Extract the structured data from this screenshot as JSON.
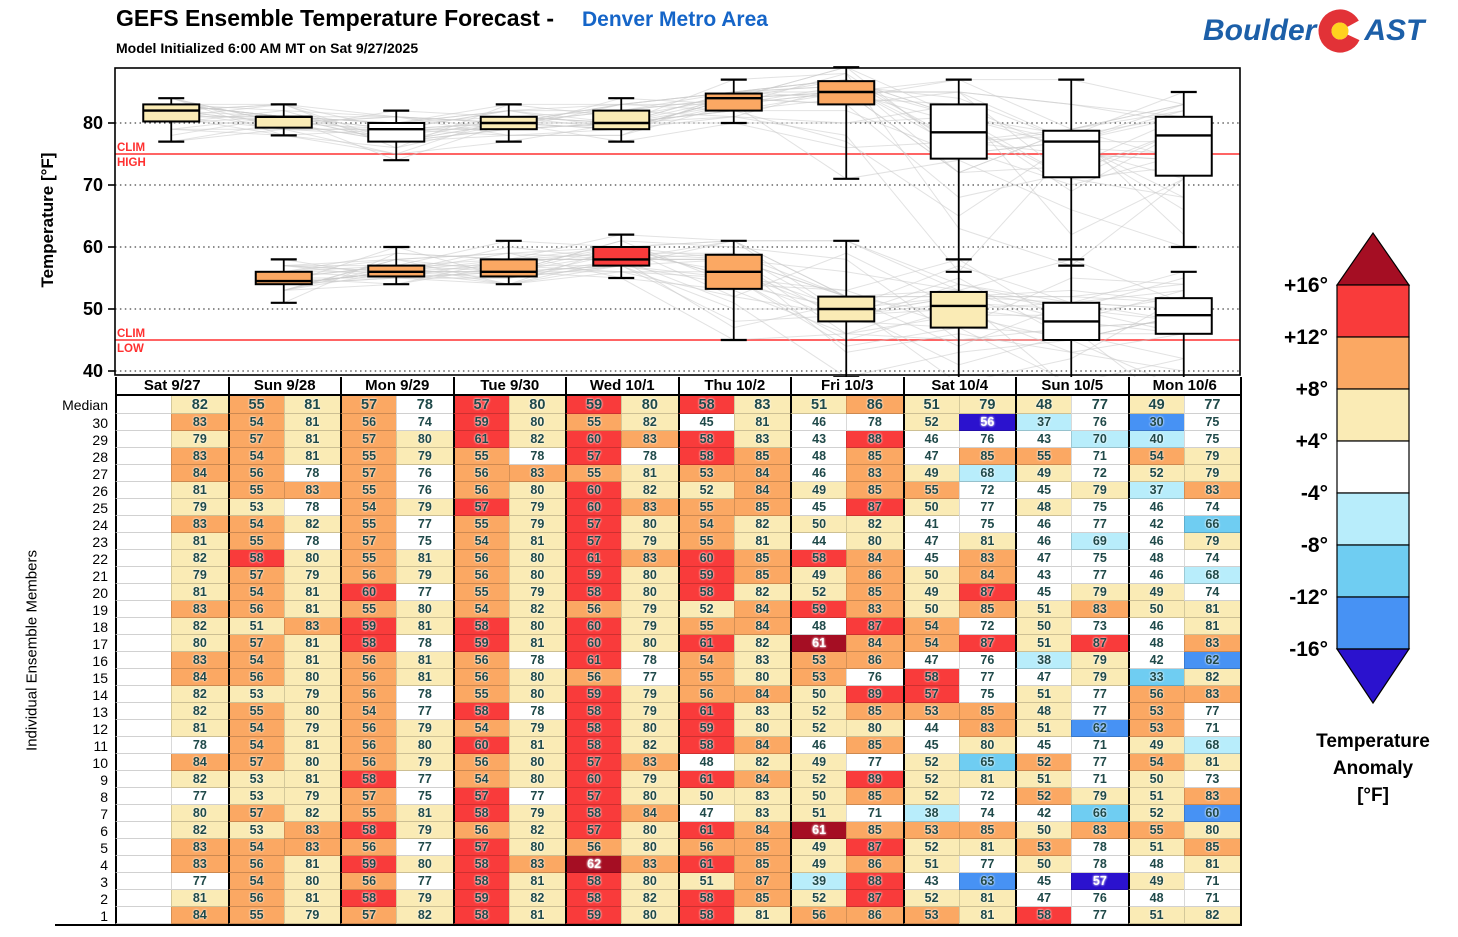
{
  "title": {
    "main": "GEFS Ensemble Temperature Forecast -",
    "region": "Denver Metro Area",
    "subtitle": "Model Initialized 6:00 AM MT on Sat 9/27/2025"
  },
  "logo": {
    "part1": "Boulder",
    "part2": "AST"
  },
  "colors": {
    "darkred": "#A50E23",
    "red": "#F93B3B",
    "orange": "#FBA863",
    "paleyellow": "#FAEBB5",
    "white": "#FFFFFF",
    "palecyan": "#B8EDFB",
    "lightblue": "#6FCDF2",
    "medblue": "#4792F4",
    "darkblue": "#2B12CE",
    "clim_line": "#FF3030",
    "spaghetti": "#CACACA",
    "title_blue": "#1565C8",
    "logo_blue": "#1C5FA8",
    "logo_red": "#E23237",
    "logo_yellow": "#FFD21E",
    "cell_text": "#1F4949",
    "cell_text_light": "#FFFFFF"
  },
  "chart_data": {
    "type": "box",
    "ylabel": "Temperature [°F]",
    "row_axis_label": "Individual Ensemble Members",
    "yticks": [
      40,
      50,
      60,
      70,
      80
    ],
    "clim_high": {
      "value": 75,
      "label1": "CLIM",
      "label2": "HIGH"
    },
    "clim_low": {
      "value": 45,
      "label1": "CLIM",
      "label2": "LOW"
    },
    "days": [
      "Sat 9/27",
      "Sun 9/28",
      "Mon 9/29",
      "Tue 9/30",
      "Wed 10/1",
      "Thu 10/2",
      "Fri 10/3",
      "Sat 10/4",
      "Sun 10/5",
      "Mon 10/6"
    ],
    "high_box_colors": [
      "paleyellow",
      "paleyellow",
      "white",
      "paleyellow",
      "paleyellow",
      "orange",
      "orange",
      "white",
      "white",
      "white"
    ],
    "low_box_colors": [
      null,
      "orange",
      "orange",
      "orange",
      "red",
      "orange",
      "paleyellow",
      "paleyellow",
      "white",
      "white"
    ],
    "clim_high_by_day": [
      75,
      75,
      75,
      75,
      75,
      75.4,
      75,
      75,
      75,
      75
    ],
    "clim_low_by_day": [
      45.5,
      45.4,
      45.2,
      45.0,
      44.8,
      44.6,
      44.5,
      45.0,
      43.9,
      44.2
    ]
  },
  "table": {
    "median": {
      "label": "Median",
      "values": [
        82,
        55,
        81,
        57,
        78,
        57,
        80,
        59,
        80,
        58,
        83,
        51,
        86,
        51,
        79,
        48,
        77,
        49,
        77
      ]
    },
    "members": [
      {
        "label": "30",
        "values": [
          83,
          54,
          81,
          56,
          74,
          59,
          80,
          55,
          82,
          45,
          81,
          46,
          78,
          52,
          56,
          37,
          76,
          30,
          75
        ]
      },
      {
        "label": "29",
        "values": [
          79,
          57,
          81,
          57,
          80,
          61,
          82,
          60,
          83,
          58,
          83,
          43,
          88,
          46,
          76,
          43,
          70,
          40,
          75
        ]
      },
      {
        "label": "28",
        "values": [
          83,
          54,
          81,
          55,
          79,
          55,
          78,
          57,
          78,
          58,
          85,
          48,
          85,
          47,
          85,
          55,
          71,
          54,
          79
        ]
      },
      {
        "label": "27",
        "values": [
          84,
          56,
          78,
          57,
          76,
          56,
          83,
          55,
          81,
          53,
          84,
          46,
          83,
          49,
          68,
          49,
          72,
          52,
          79
        ]
      },
      {
        "label": "26",
        "values": [
          81,
          55,
          83,
          55,
          76,
          56,
          80,
          60,
          82,
          52,
          84,
          49,
          85,
          55,
          72,
          45,
          79,
          37,
          83
        ]
      },
      {
        "label": "25",
        "values": [
          79,
          53,
          78,
          54,
          79,
          57,
          79,
          60,
          83,
          55,
          85,
          45,
          87,
          50,
          77,
          48,
          75,
          46,
          74
        ]
      },
      {
        "label": "24",
        "values": [
          83,
          54,
          82,
          55,
          77,
          55,
          79,
          57,
          80,
          54,
          82,
          50,
          82,
          41,
          75,
          46,
          77,
          42,
          66
        ]
      },
      {
        "label": "23",
        "values": [
          81,
          55,
          78,
          57,
          75,
          54,
          81,
          57,
          79,
          55,
          81,
          44,
          80,
          47,
          81,
          46,
          69,
          46,
          79
        ]
      },
      {
        "label": "22",
        "values": [
          82,
          58,
          80,
          55,
          81,
          56,
          80,
          61,
          83,
          60,
          85,
          58,
          84,
          45,
          83,
          47,
          75,
          48,
          74
        ]
      },
      {
        "label": "21",
        "values": [
          79,
          57,
          79,
          56,
          79,
          56,
          80,
          59,
          80,
          59,
          85,
          49,
          86,
          50,
          84,
          43,
          77,
          46,
          68
        ]
      },
      {
        "label": "20",
        "values": [
          81,
          54,
          81,
          60,
          77,
          55,
          79,
          58,
          80,
          58,
          82,
          52,
          85,
          49,
          87,
          45,
          79,
          49,
          74
        ]
      },
      {
        "label": "19",
        "values": [
          83,
          56,
          81,
          55,
          80,
          54,
          82,
          56,
          79,
          52,
          84,
          59,
          83,
          50,
          85,
          51,
          83,
          50,
          81
        ]
      },
      {
        "label": "18",
        "values": [
          82,
          51,
          83,
          59,
          81,
          58,
          80,
          60,
          79,
          55,
          84,
          48,
          87,
          54,
          72,
          50,
          73,
          46,
          81
        ]
      },
      {
        "label": "17",
        "values": [
          80,
          57,
          81,
          58,
          78,
          59,
          81,
          60,
          80,
          61,
          82,
          61,
          84,
          54,
          87,
          51,
          87,
          48,
          83
        ]
      },
      {
        "label": "16",
        "values": [
          83,
          54,
          81,
          56,
          81,
          56,
          78,
          61,
          78,
          54,
          83,
          53,
          86,
          47,
          76,
          38,
          79,
          42,
          62
        ]
      },
      {
        "label": "15",
        "values": [
          84,
          56,
          80,
          56,
          81,
          56,
          80,
          56,
          77,
          55,
          80,
          53,
          76,
          58,
          77,
          47,
          79,
          33,
          82
        ]
      },
      {
        "label": "14",
        "values": [
          82,
          53,
          79,
          56,
          78,
          55,
          80,
          59,
          79,
          56,
          84,
          50,
          89,
          57,
          75,
          51,
          77,
          56,
          83
        ]
      },
      {
        "label": "13",
        "values": [
          82,
          55,
          80,
          54,
          77,
          58,
          78,
          58,
          79,
          61,
          83,
          52,
          85,
          53,
          85,
          48,
          77,
          53,
          77
        ]
      },
      {
        "label": "12",
        "values": [
          81,
          54,
          79,
          56,
          79,
          54,
          79,
          58,
          80,
          59,
          80,
          52,
          80,
          44,
          83,
          51,
          62,
          53,
          71
        ]
      },
      {
        "label": "11",
        "values": [
          78,
          54,
          81,
          56,
          80,
          60,
          81,
          58,
          82,
          58,
          84,
          46,
          85,
          45,
          80,
          45,
          71,
          49,
          68
        ]
      },
      {
        "label": "10",
        "values": [
          84,
          57,
          80,
          56,
          79,
          56,
          80,
          57,
          83,
          48,
          82,
          49,
          77,
          52,
          65,
          52,
          77,
          54,
          81
        ]
      },
      {
        "label": "9",
        "values": [
          82,
          53,
          81,
          58,
          77,
          54,
          80,
          60,
          79,
          61,
          84,
          52,
          89,
          52,
          81,
          51,
          71,
          50,
          73
        ]
      },
      {
        "label": "8",
        "values": [
          77,
          53,
          79,
          57,
          75,
          57,
          77,
          57,
          80,
          50,
          83,
          50,
          85,
          52,
          72,
          52,
          79,
          51,
          83
        ]
      },
      {
        "label": "7",
        "values": [
          80,
          57,
          82,
          55,
          81,
          58,
          79,
          58,
          84,
          47,
          83,
          51,
          71,
          38,
          74,
          42,
          66,
          52,
          60
        ]
      },
      {
        "label": "6",
        "values": [
          82,
          53,
          83,
          58,
          79,
          56,
          82,
          57,
          80,
          61,
          84,
          61,
          85,
          53,
          85,
          50,
          83,
          55,
          80
        ]
      },
      {
        "label": "5",
        "values": [
          83,
          54,
          83,
          56,
          77,
          57,
          80,
          56,
          80,
          56,
          85,
          49,
          87,
          52,
          81,
          53,
          78,
          51,
          85
        ]
      },
      {
        "label": "4",
        "values": [
          83,
          56,
          81,
          59,
          80,
          58,
          83,
          62,
          83,
          61,
          85,
          49,
          86,
          51,
          77,
          50,
          78,
          48,
          81
        ]
      },
      {
        "label": "3",
        "values": [
          77,
          54,
          80,
          56,
          77,
          58,
          81,
          58,
          80,
          51,
          87,
          39,
          88,
          43,
          63,
          45,
          57,
          49,
          71
        ]
      },
      {
        "label": "2",
        "values": [
          81,
          56,
          81,
          58,
          79,
          59,
          82,
          58,
          82,
          58,
          85,
          52,
          87,
          52,
          81,
          47,
          76,
          48,
          71
        ]
      },
      {
        "label": "1",
        "values": [
          84,
          55,
          79,
          57,
          82,
          58,
          81,
          59,
          80,
          58,
          81,
          56,
          86,
          53,
          81,
          58,
          77,
          51,
          82
        ]
      }
    ]
  },
  "legend": {
    "title_lines": [
      "Temperature",
      "Anomaly",
      "[°F]"
    ],
    "labels": [
      "+16°",
      "+12°",
      "+8°",
      "+4°",
      "-4°",
      "-8°",
      "-12°",
      "-16°"
    ],
    "segment_colors": [
      "red",
      "orange",
      "paleyellow",
      "white",
      "palecyan",
      "lightblue",
      "medblue"
    ],
    "top_arrow": "darkred",
    "bottom_arrow": "darkblue"
  }
}
